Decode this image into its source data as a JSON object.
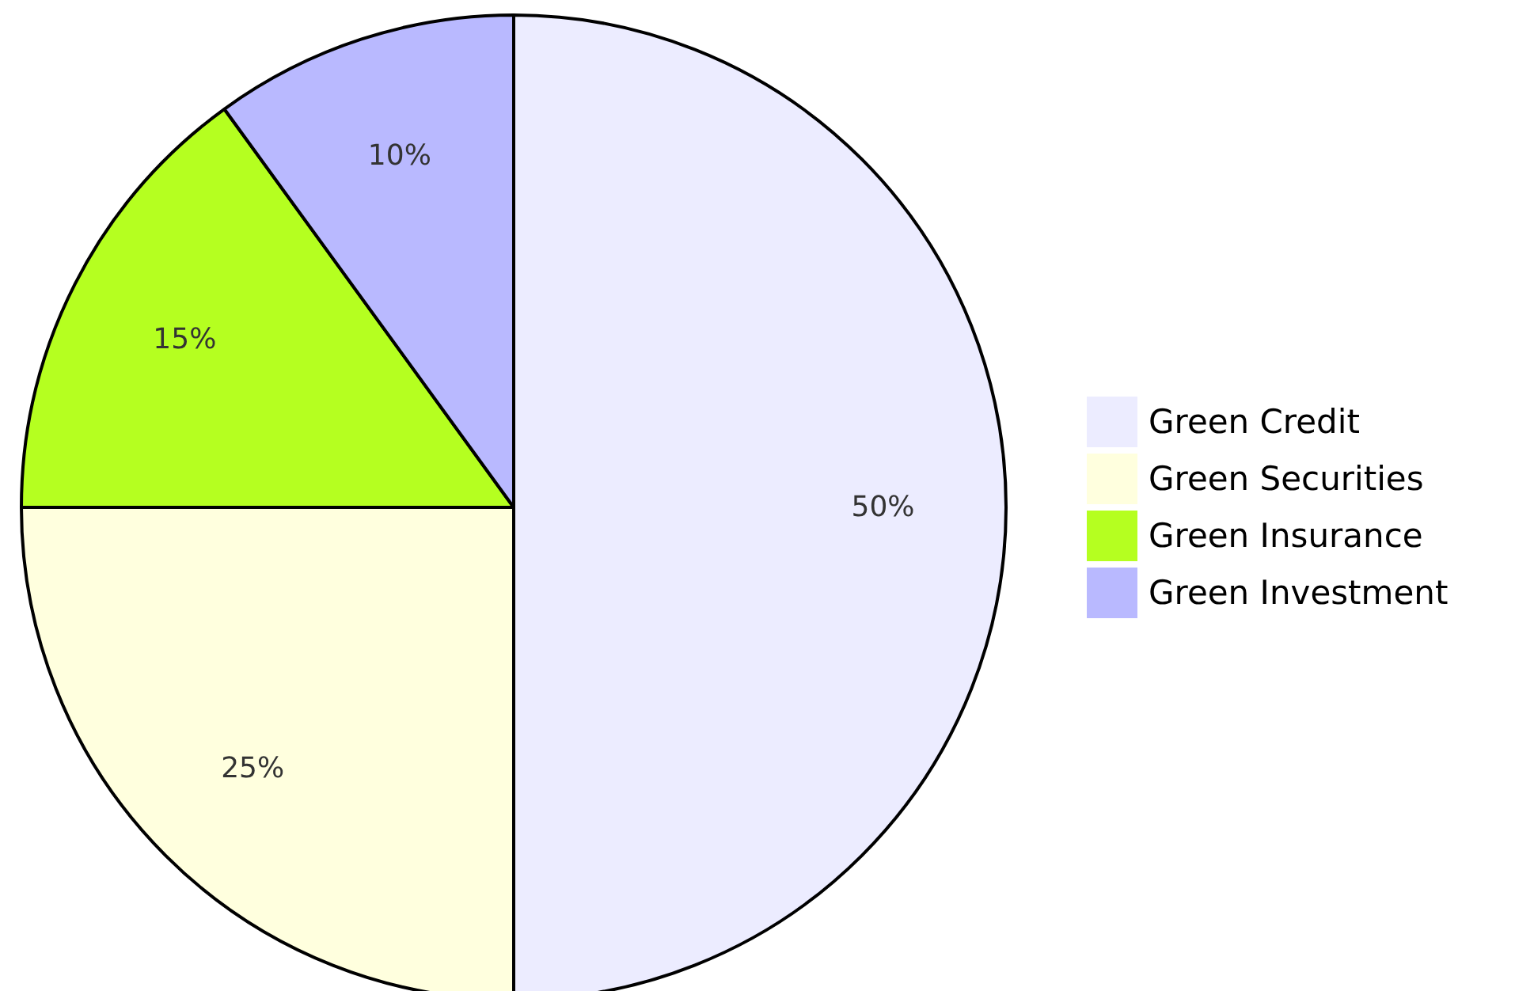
{
  "chart_data": {
    "type": "pie",
    "categories": [
      "Green Credit",
      "Green Securities",
      "Green Insurance",
      "Green Investment"
    ],
    "values": [
      50,
      25,
      15,
      10
    ],
    "colors": [
      "#ececff",
      "#ffffde",
      "#b5ff20",
      "#b9b9ff"
    ],
    "value_labels": [
      "50%",
      "25%",
      "15%",
      "10%"
    ],
    "legend": "right"
  }
}
